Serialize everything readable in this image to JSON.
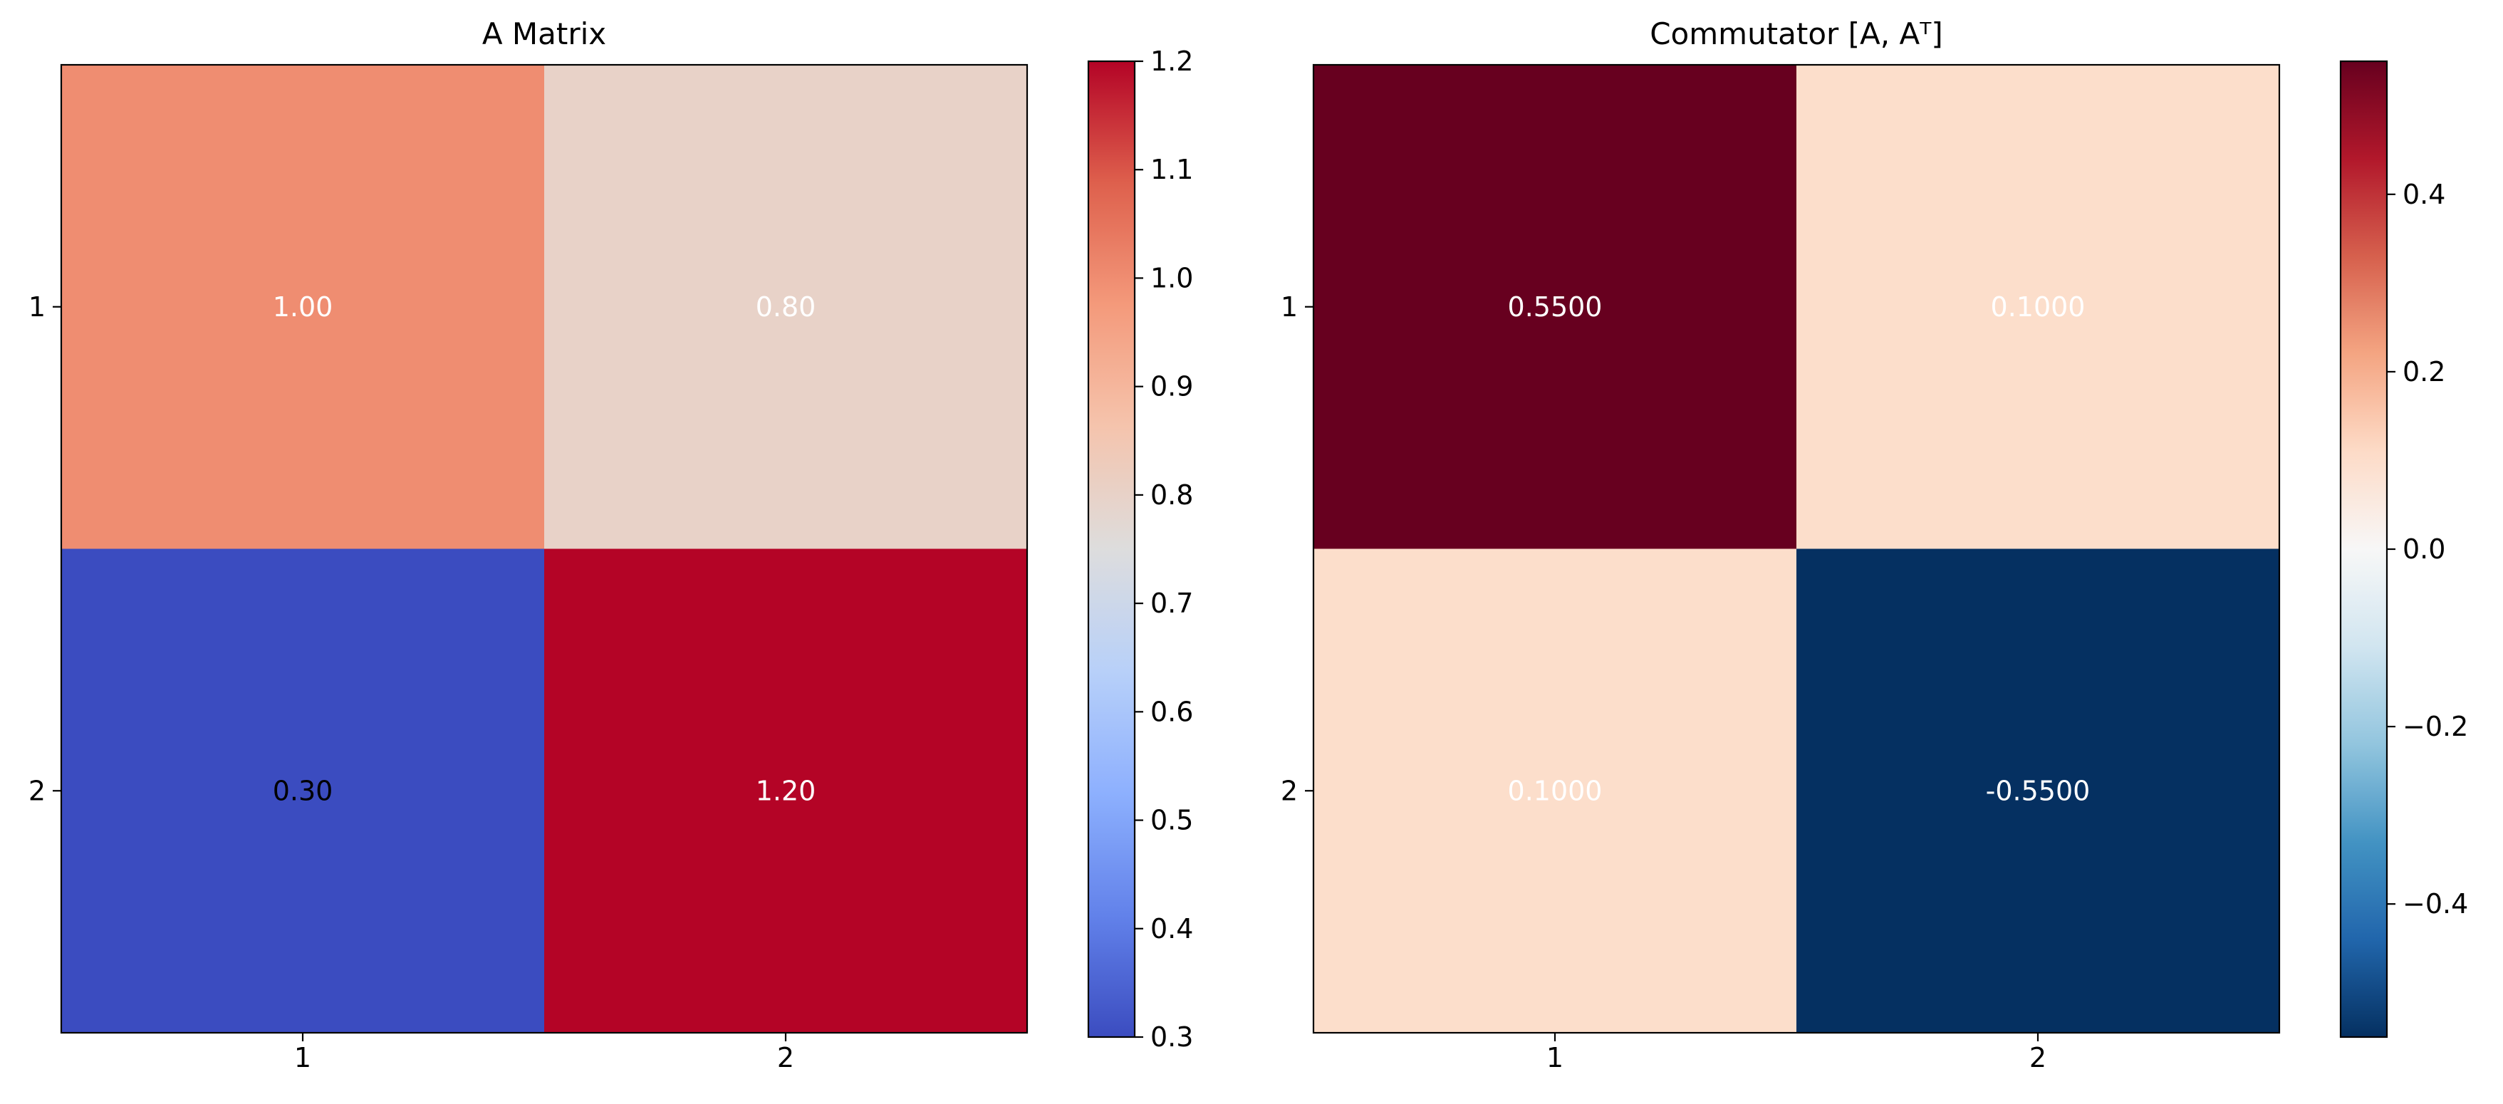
{
  "chart_data": [
    {
      "type": "heatmap",
      "title": "A Matrix",
      "x_tick_labels": [
        "1",
        "2"
      ],
      "y_tick_labels": [
        "1",
        "2"
      ],
      "values": [
        [
          1.0,
          0.8
        ],
        [
          0.3,
          1.2
        ]
      ],
      "cell_labels": [
        [
          "1.00",
          "0.80"
        ],
        [
          "0.30",
          "1.20"
        ]
      ],
      "cell_label_colors": [
        [
          "#ffffff",
          "#ffffff"
        ],
        [
          "#000000",
          "#ffffff"
        ]
      ],
      "colormap": "coolwarm",
      "colorbar": {
        "range": [
          0.3,
          1.2
        ],
        "ticks": [
          0.3,
          0.4,
          0.5,
          0.6,
          0.7,
          0.8,
          0.9,
          1.0,
          1.1,
          1.2
        ],
        "tick_labels": [
          "0.3",
          "0.4",
          "0.5",
          "0.6",
          "0.7",
          "0.8",
          "0.9",
          "1.0",
          "1.1",
          "1.2"
        ]
      }
    },
    {
      "type": "heatmap",
      "title": "Commutator [A, Aᵀ]",
      "x_tick_labels": [
        "1",
        "2"
      ],
      "y_tick_labels": [
        "1",
        "2"
      ],
      "values": [
        [
          0.55,
          0.1
        ],
        [
          0.1,
          -0.55
        ]
      ],
      "cell_labels": [
        [
          "0.5500",
          "0.1000"
        ],
        [
          "0.1000",
          "-0.5500"
        ]
      ],
      "cell_label_colors": [
        [
          "#ffffff",
          "#ffffff"
        ],
        [
          "#ffffff",
          "#ffffff"
        ]
      ],
      "colormap": "RdBu_r",
      "colorbar": {
        "range": [
          -0.55,
          0.55
        ],
        "ticks": [
          -0.4,
          -0.2,
          0.0,
          0.2,
          0.4
        ],
        "tick_labels": [
          "−0.4",
          "−0.2",
          "0.0",
          "0.2",
          "0.4"
        ]
      }
    }
  ]
}
